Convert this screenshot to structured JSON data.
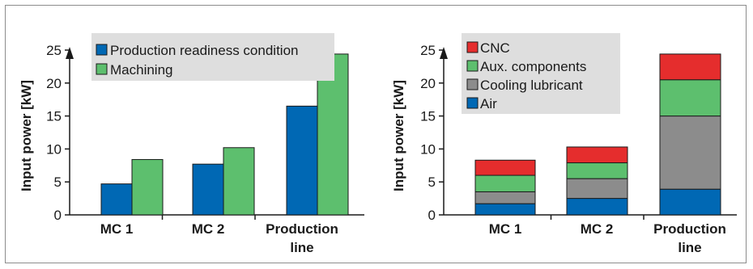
{
  "chart_data": [
    {
      "type": "bar",
      "categories": [
        [
          "MC 1"
        ],
        [
          "MC 2"
        ],
        [
          "Production",
          "line"
        ]
      ],
      "series": [
        {
          "name": "Production readiness condition",
          "values": [
            4.7,
            7.7,
            16.5
          ],
          "color": "#0068b4"
        },
        {
          "name": "Machining",
          "values": [
            8.4,
            10.2,
            24.4
          ],
          "color": "#5dbf6e"
        }
      ],
      "ylabel": "Input power [kW]",
      "ylim": [
        0,
        25
      ],
      "yticks": [
        0,
        5,
        10,
        15,
        20,
        25
      ],
      "legend": "top-left",
      "grid": false
    },
    {
      "type": "bar",
      "stacked": true,
      "categories": [
        [
          "MC 1"
        ],
        [
          "MC 2"
        ],
        [
          "Production",
          "line"
        ]
      ],
      "series": [
        {
          "name": "Air",
          "values": [
            1.7,
            2.5,
            3.9
          ],
          "color": "#0068b4"
        },
        {
          "name": "Cooling lubricant",
          "values": [
            1.8,
            3.0,
            11.1
          ],
          "color": "#8c8c8c"
        },
        {
          "name": "Aux. components",
          "values": [
            2.5,
            2.4,
            5.5
          ],
          "color": "#5dbf6e"
        },
        {
          "name": "CNC",
          "values": [
            2.3,
            2.4,
            3.9
          ],
          "color": "#e52d2d"
        }
      ],
      "ylabel": "Input power [kW]",
      "ylim": [
        0,
        25
      ],
      "yticks": [
        0,
        5,
        10,
        15,
        20,
        25
      ],
      "legend": "top-left",
      "legend_order": [
        "CNC",
        "Aux. components",
        "Cooling lubricant",
        "Air"
      ],
      "grid": false
    }
  ]
}
